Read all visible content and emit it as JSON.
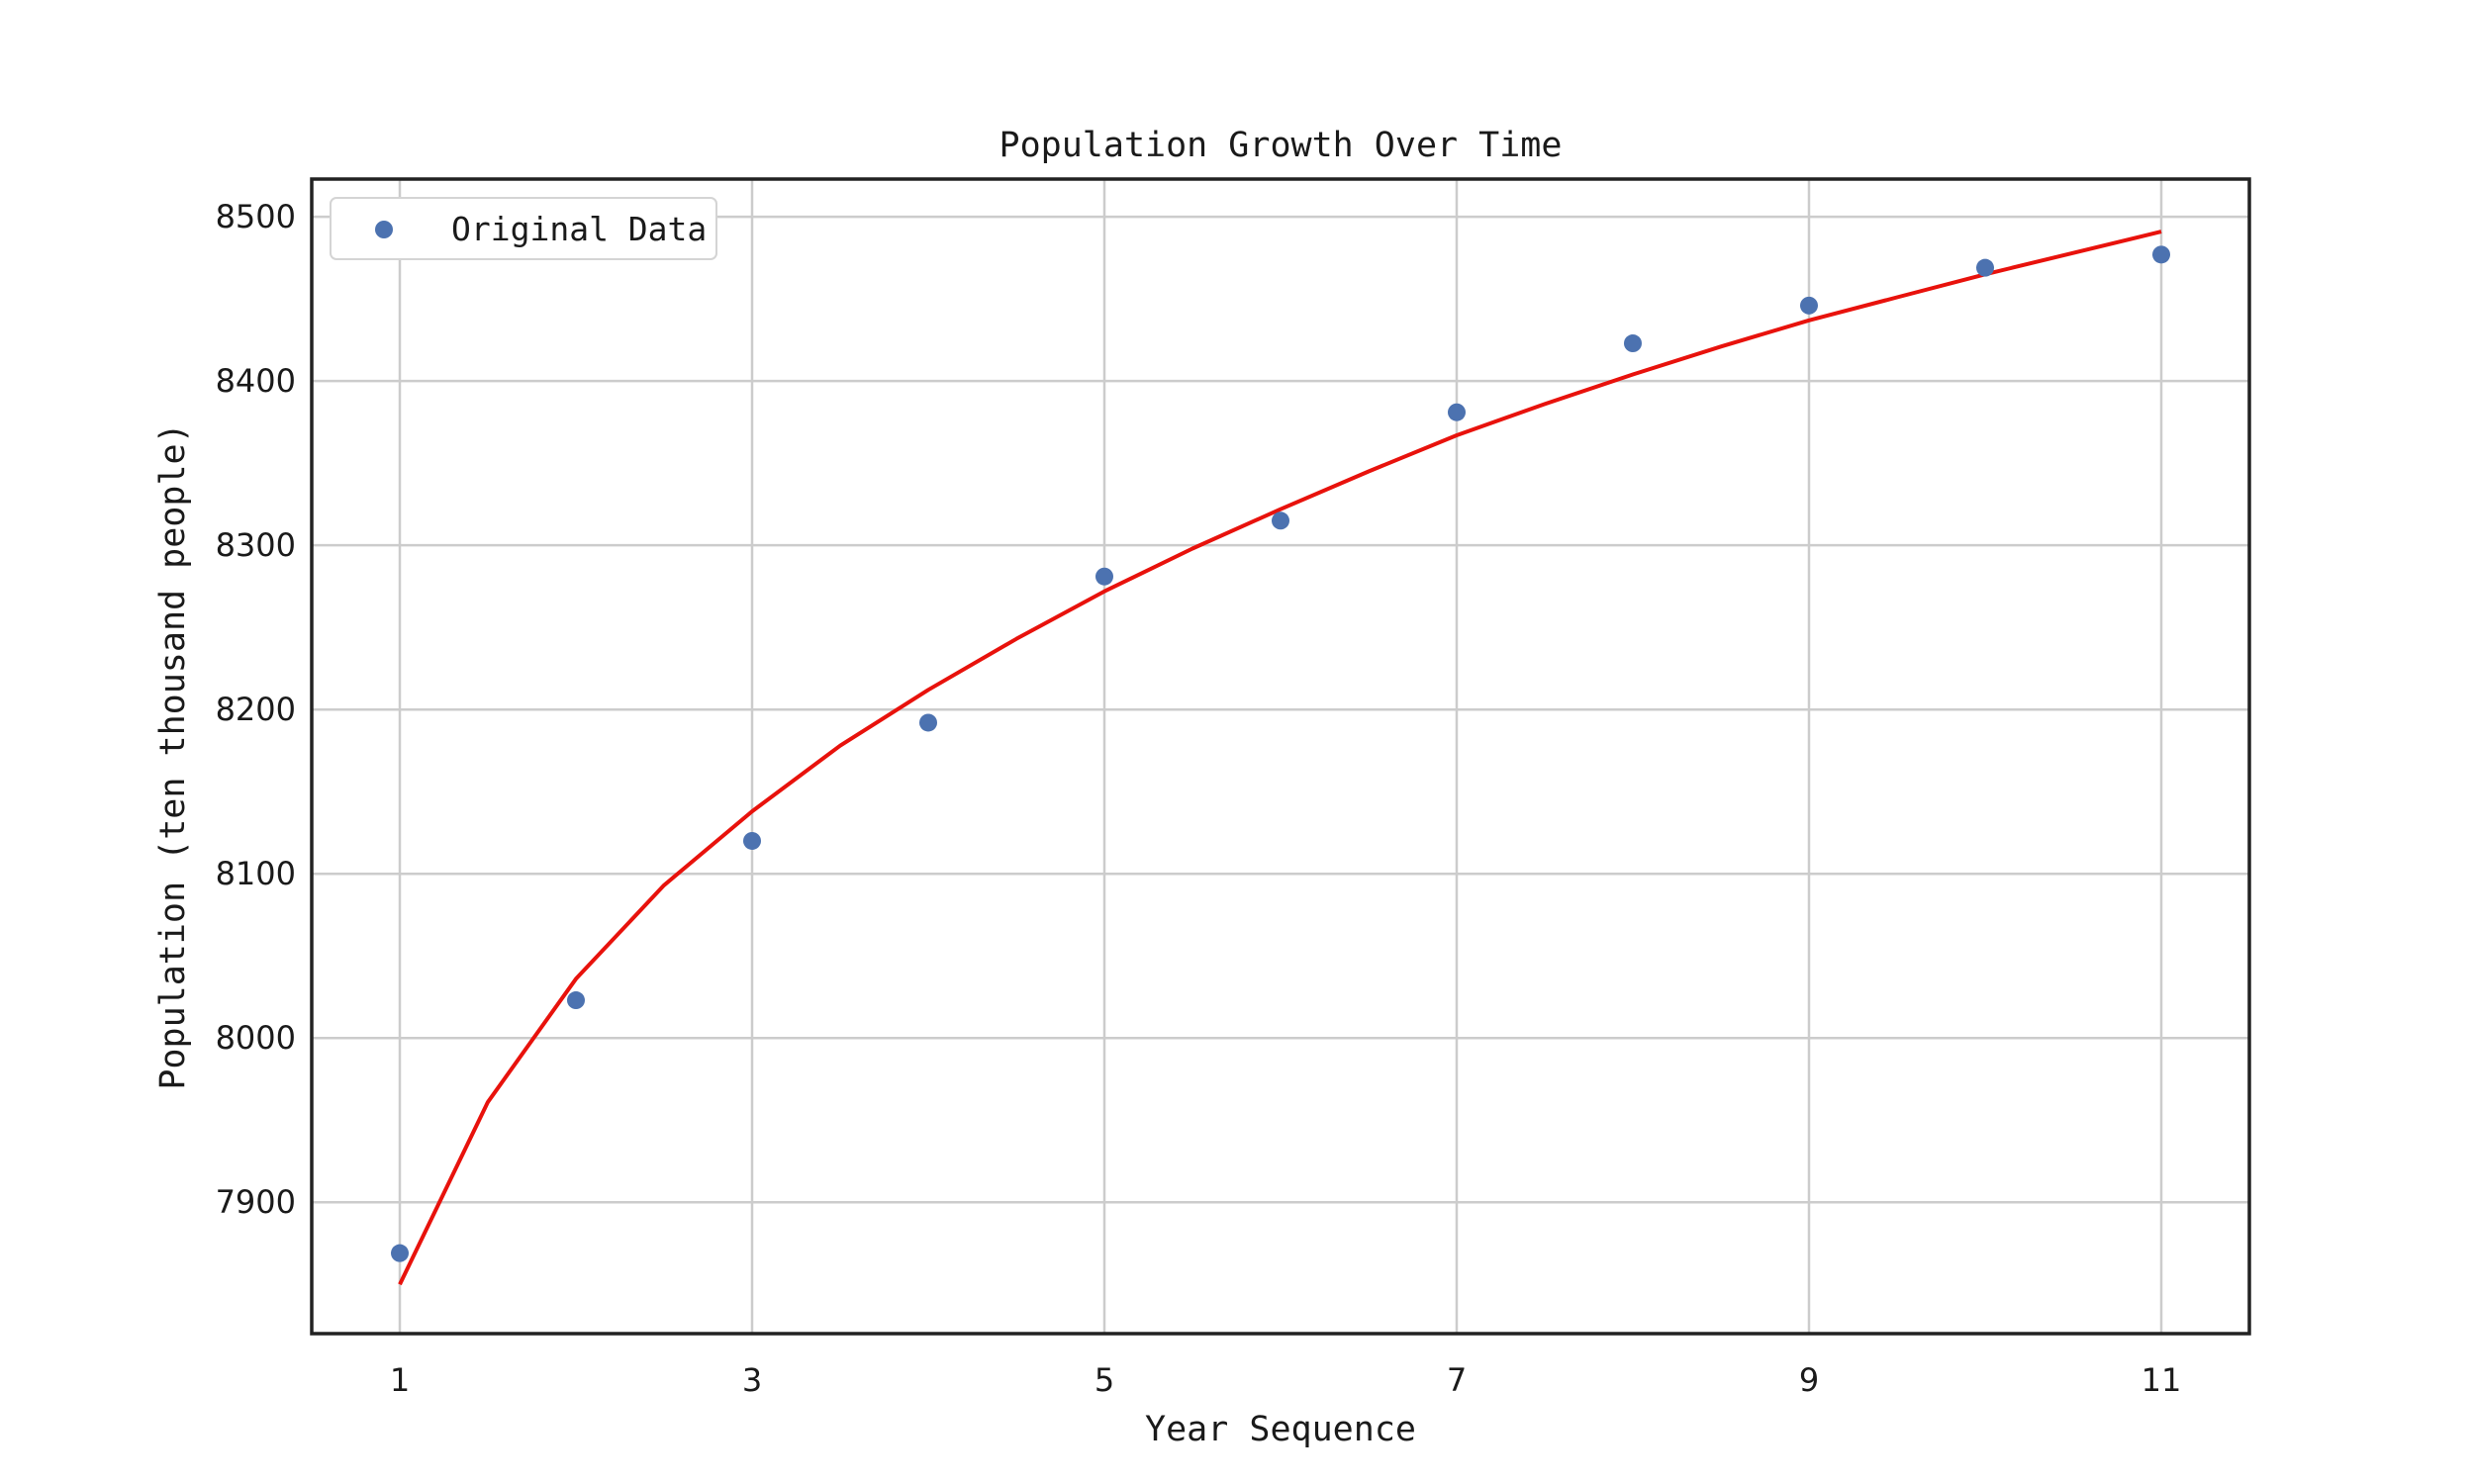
{
  "chart_data": {
    "type": "scatter",
    "title": "Population Growth Over Time",
    "xlabel": "Year Sequence",
    "ylabel": "Population (ten thousand people)",
    "xlim": [
      0.5,
      11.5
    ],
    "ylim": [
      7820,
      8523
    ],
    "x_ticks": [
      1,
      3,
      5,
      7,
      9,
      11
    ],
    "y_ticks": [
      7900,
      8000,
      8100,
      8200,
      8300,
      8400,
      8500
    ],
    "grid": true,
    "legend_position": "top-left",
    "series": [
      {
        "name": "Original Data",
        "kind": "scatter",
        "color": "#4c72b0",
        "x": [
          1,
          2,
          3,
          4,
          5,
          6,
          7,
          8,
          9,
          10,
          11
        ],
        "y": [
          7869,
          8023,
          8120,
          8192,
          8281,
          8315,
          8381,
          8423,
          8446,
          8469,
          8477
        ]
      },
      {
        "kind": "line",
        "color": "#e8120c",
        "x": [
          1,
          1.5,
          2,
          2.5,
          3,
          3.5,
          4,
          4.5,
          5,
          5.5,
          6,
          6.5,
          7,
          7.5,
          8,
          8.5,
          9,
          9.5,
          10,
          10.5,
          11
        ],
        "y": [
          7850,
          7961,
          8036,
          8093,
          8138,
          8178,
          8212,
          8243,
          8272,
          8298,
          8322,
          8345,
          8367,
          8386,
          8404,
          8421,
          8437,
          8451,
          8465,
          8478,
          8491
        ]
      }
    ]
  }
}
